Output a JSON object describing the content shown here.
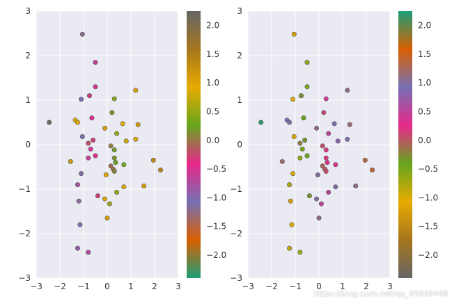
{
  "chart_data": [
    {
      "type": "scatter",
      "xlim": [
        -3,
        3
      ],
      "ylim": [
        -3,
        3
      ],
      "x_ticks": [
        "−3",
        "−2",
        "−1",
        "0",
        "1",
        "2",
        "3"
      ],
      "y_ticks": [
        "−3",
        "−2",
        "−1",
        "0",
        "1",
        "2",
        "3"
      ],
      "grid": true,
      "colorbar": {
        "colormap": "Dark2",
        "range": [
          -2.4,
          2.25
        ],
        "ticks": [
          2.0,
          1.5,
          1.0,
          0.5,
          0.0,
          -0.5,
          -1.0,
          -1.5,
          -2.0
        ],
        "tick_labels": [
          "2.0",
          "1.5",
          "1.0",
          "0.5",
          "0.0",
          "−0.5",
          "−1.0",
          "−1.5",
          "−2.0"
        ]
      },
      "points": [
        {
          "x": -1.05,
          "y": 2.48,
          "c": -1.2
        },
        {
          "x": -0.5,
          "y": 1.85,
          "c": -0.6
        },
        {
          "x": -0.5,
          "y": 1.3,
          "c": -0.5
        },
        {
          "x": -0.75,
          "y": 1.1,
          "c": -0.3
        },
        {
          "x": -1.1,
          "y": 1.02,
          "c": -1.0
        },
        {
          "x": 0.3,
          "y": 1.03,
          "c": 0.4
        },
        {
          "x": 1.2,
          "y": 1.22,
          "c": 1.1
        },
        {
          "x": 0.2,
          "y": 0.72,
          "c": 0.1
        },
        {
          "x": -0.65,
          "y": 0.6,
          "c": -0.4
        },
        {
          "x": -1.35,
          "y": 0.55,
          "c": 0.9
        },
        {
          "x": -1.25,
          "y": 0.5,
          "c": 0.95
        },
        {
          "x": -2.45,
          "y": 0.5,
          "c": 2.2
        },
        {
          "x": 0.65,
          "y": 0.47,
          "c": 0.9
        },
        {
          "x": 1.3,
          "y": 0.45,
          "c": 1.15
        },
        {
          "x": -0.1,
          "y": 0.37,
          "c": 1.1
        },
        {
          "x": 0.4,
          "y": 0.25,
          "c": 0.5
        },
        {
          "x": -1.05,
          "y": 0.18,
          "c": -1.1
        },
        {
          "x": 0.8,
          "y": 0.08,
          "c": 0.8
        },
        {
          "x": 1.2,
          "y": 0.12,
          "c": 0.9
        },
        {
          "x": -0.6,
          "y": 0.1,
          "c": -0.3
        },
        {
          "x": -0.8,
          "y": 0.03,
          "c": -0.2
        },
        {
          "x": 0.15,
          "y": -0.03,
          "c": 0.05
        },
        {
          "x": -0.7,
          "y": -0.1,
          "c": -0.5
        },
        {
          "x": 0.3,
          "y": -0.12,
          "c": 0.2
        },
        {
          "x": -0.5,
          "y": -0.25,
          "c": -0.45
        },
        {
          "x": 0.3,
          "y": -0.3,
          "c": 0.15
        },
        {
          "x": -0.8,
          "y": -0.3,
          "c": -0.6
        },
        {
          "x": 0.35,
          "y": -0.4,
          "c": 0.25
        },
        {
          "x": -1.55,
          "y": -0.38,
          "c": 1.2
        },
        {
          "x": 0.7,
          "y": -0.45,
          "c": 0.3
        },
        {
          "x": 1.95,
          "y": -0.35,
          "c": 1.35
        },
        {
          "x": 2.25,
          "y": -0.57,
          "c": 1.4
        },
        {
          "x": 0.15,
          "y": -0.48,
          "c": -0.05
        },
        {
          "x": 0.25,
          "y": -0.55,
          "c": 0.0
        },
        {
          "x": -1.1,
          "y": -0.65,
          "c": -1.0
        },
        {
          "x": 0.3,
          "y": -0.6,
          "c": 0.1
        },
        {
          "x": -0.05,
          "y": -0.68,
          "c": 1.0
        },
        {
          "x": 0.7,
          "y": -0.95,
          "c": 0.85
        },
        {
          "x": 1.55,
          "y": -0.93,
          "c": 1.1
        },
        {
          "x": -1.25,
          "y": -0.9,
          "c": -0.8
        },
        {
          "x": 0.4,
          "y": -1.07,
          "c": 0.5
        },
        {
          "x": -0.4,
          "y": -1.15,
          "c": -0.3
        },
        {
          "x": -0.1,
          "y": -1.22,
          "c": 1.0
        },
        {
          "x": -1.2,
          "y": -1.27,
          "c": -1.2
        },
        {
          "x": 0.1,
          "y": -1.33,
          "c": 0.5
        },
        {
          "x": 0.0,
          "y": -1.65,
          "c": 1.1
        },
        {
          "x": -1.15,
          "y": -1.8,
          "c": -1.1
        },
        {
          "x": -1.25,
          "y": -2.33,
          "c": -0.9
        },
        {
          "x": -0.8,
          "y": -2.42,
          "c": -0.7
        }
      ]
    },
    {
      "type": "scatter",
      "xlim": [
        -3,
        3
      ],
      "ylim": [
        -3,
        3
      ],
      "x_ticks": [
        "−3",
        "−2",
        "−1",
        "0",
        "1",
        "2",
        "3"
      ],
      "y_ticks": [
        "−3",
        "−2",
        "−1",
        "0",
        "1",
        "2",
        "3"
      ],
      "grid": true,
      "colorbar": {
        "colormap": "Dark2_r",
        "range": [
          -2.4,
          2.25
        ],
        "ticks": [
          2.0,
          1.5,
          1.0,
          0.5,
          0.0,
          -0.5,
          -1.0,
          -1.5,
          -2.0
        ],
        "tick_labels": [
          "2.0",
          "1.5",
          "1.0",
          "0.5",
          "0.0",
          "−0.5",
          "−1.0",
          "−1.5",
          "−2.0"
        ]
      },
      "points": [
        {
          "x": -1.05,
          "y": 2.48,
          "c": -1.2
        },
        {
          "x": -0.5,
          "y": 1.85,
          "c": -0.6
        },
        {
          "x": -0.5,
          "y": 1.3,
          "c": -0.5
        },
        {
          "x": -0.75,
          "y": 1.1,
          "c": -0.3
        },
        {
          "x": -1.1,
          "y": 1.02,
          "c": -1.0
        },
        {
          "x": 0.3,
          "y": 1.03,
          "c": 0.4
        },
        {
          "x": 1.2,
          "y": 1.22,
          "c": 1.1
        },
        {
          "x": 0.2,
          "y": 0.72,
          "c": 0.1
        },
        {
          "x": -0.65,
          "y": 0.6,
          "c": -0.4
        },
        {
          "x": -1.35,
          "y": 0.55,
          "c": 0.9
        },
        {
          "x": -1.25,
          "y": 0.5,
          "c": 0.95
        },
        {
          "x": -2.45,
          "y": 0.5,
          "c": 2.2
        },
        {
          "x": 0.65,
          "y": 0.47,
          "c": 0.9
        },
        {
          "x": 1.3,
          "y": 0.45,
          "c": 1.15
        },
        {
          "x": -0.1,
          "y": 0.37,
          "c": 1.1
        },
        {
          "x": 0.4,
          "y": 0.25,
          "c": 0.5
        },
        {
          "x": -1.05,
          "y": 0.18,
          "c": -1.1
        },
        {
          "x": 0.8,
          "y": 0.08,
          "c": 0.8
        },
        {
          "x": 1.2,
          "y": 0.12,
          "c": 0.9
        },
        {
          "x": -0.6,
          "y": 0.1,
          "c": -0.3
        },
        {
          "x": -0.8,
          "y": 0.03,
          "c": -0.2
        },
        {
          "x": 0.15,
          "y": -0.03,
          "c": 0.05
        },
        {
          "x": -0.7,
          "y": -0.1,
          "c": -0.5
        },
        {
          "x": 0.3,
          "y": -0.12,
          "c": 0.2
        },
        {
          "x": -0.5,
          "y": -0.25,
          "c": -0.45
        },
        {
          "x": 0.3,
          "y": -0.3,
          "c": 0.15
        },
        {
          "x": -0.8,
          "y": -0.3,
          "c": -0.6
        },
        {
          "x": 0.35,
          "y": -0.4,
          "c": 0.25
        },
        {
          "x": -1.55,
          "y": -0.38,
          "c": 1.2
        },
        {
          "x": 0.7,
          "y": -0.45,
          "c": 0.3
        },
        {
          "x": 1.95,
          "y": -0.35,
          "c": 1.35
        },
        {
          "x": 2.25,
          "y": -0.57,
          "c": 1.4
        },
        {
          "x": 0.15,
          "y": -0.48,
          "c": -0.05
        },
        {
          "x": 0.25,
          "y": -0.55,
          "c": 0.0
        },
        {
          "x": -1.1,
          "y": -0.65,
          "c": -1.0
        },
        {
          "x": 0.3,
          "y": -0.6,
          "c": 0.1
        },
        {
          "x": -0.05,
          "y": -0.68,
          "c": 1.0
        },
        {
          "x": 0.7,
          "y": -0.95,
          "c": 0.85
        },
        {
          "x": 1.55,
          "y": -0.93,
          "c": 1.1
        },
        {
          "x": -1.25,
          "y": -0.9,
          "c": -0.8
        },
        {
          "x": 0.4,
          "y": -1.07,
          "c": 0.5
        },
        {
          "x": -0.4,
          "y": -1.15,
          "c": -0.3
        },
        {
          "x": -0.1,
          "y": -1.22,
          "c": 1.0
        },
        {
          "x": -1.2,
          "y": -1.27,
          "c": -1.2
        },
        {
          "x": 0.1,
          "y": -1.33,
          "c": 0.5
        },
        {
          "x": 0.0,
          "y": -1.65,
          "c": 1.1
        },
        {
          "x": -1.15,
          "y": -1.8,
          "c": -1.1
        },
        {
          "x": -1.25,
          "y": -2.33,
          "c": -0.9
        },
        {
          "x": -0.8,
          "y": -2.42,
          "c": -0.7
        }
      ]
    }
  ],
  "colormaps": {
    "Dark2": [
      "#1b9e77",
      "#d95f02",
      "#7570b3",
      "#e7298a",
      "#66a61e",
      "#e6ab02",
      "#a6761d",
      "#666666"
    ],
    "Dark2_r": [
      "#666666",
      "#a6761d",
      "#e6ab02",
      "#66a61e",
      "#e7298a",
      "#7570b3",
      "#d95f02",
      "#1b9e77"
    ]
  },
  "style": {
    "axes_bg": "#eaeaf2",
    "grid_color": "#ffffff",
    "point_edge": "#555555"
  },
  "watermark": "https://blog.csdn.net/qq_45669448"
}
